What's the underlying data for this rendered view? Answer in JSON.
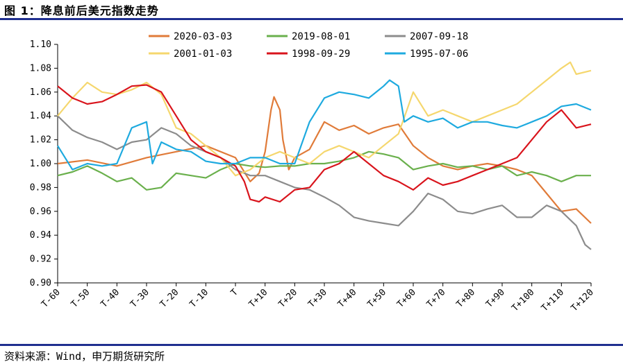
{
  "title": "图 1：降息前后美元指数走势",
  "source": "资料来源：Wind，申万期货研究所",
  "chart_data": {
    "type": "line",
    "ylim": [
      0.9,
      1.1
    ],
    "y_ticks": [
      "0.90",
      "0.92",
      "0.94",
      "0.96",
      "0.98",
      "1.00",
      "1.02",
      "1.04",
      "1.06",
      "1.08",
      "1.10"
    ],
    "x_ticks": [
      "T-60",
      "T-50",
      "T-40",
      "T-30",
      "T-20",
      "T-10",
      "T",
      "T+10",
      "T+20",
      "T+30",
      "T+40",
      "T+50",
      "T+60",
      "T+70",
      "T+80",
      "T+90",
      "T+100",
      "T+110",
      "T+120"
    ],
    "x_range": [
      -60,
      120
    ],
    "legend_position": "top",
    "series": [
      {
        "name": "2020-03-03",
        "color": "#e07b39",
        "x": [
          -60,
          -50,
          -40,
          -30,
          -20,
          -10,
          0,
          5,
          8,
          10,
          12,
          13,
          15,
          16,
          18,
          20,
          25,
          30,
          35,
          40,
          45,
          50,
          55,
          60,
          65,
          70,
          75,
          80,
          85,
          90,
          95,
          100,
          105,
          110,
          115,
          120
        ],
        "y": [
          1.0,
          1.003,
          0.998,
          1.005,
          1.01,
          1.015,
          1.005,
          0.985,
          0.992,
          1.01,
          1.045,
          1.056,
          1.045,
          1.02,
          0.995,
          1.005,
          1.012,
          1.035,
          1.028,
          1.032,
          1.025,
          1.03,
          1.033,
          1.015,
          1.005,
          0.998,
          0.995,
          0.998,
          1.0,
          0.998,
          0.995,
          0.99,
          0.975,
          0.96,
          0.962,
          0.95
        ]
      },
      {
        "name": "2019-08-01",
        "color": "#6ab04c",
        "x": [
          -60,
          -55,
          -50,
          -45,
          -40,
          -35,
          -30,
          -25,
          -20,
          -15,
          -10,
          -5,
          0,
          5,
          10,
          15,
          20,
          25,
          30,
          35,
          40,
          45,
          50,
          55,
          60,
          65,
          70,
          75,
          80,
          85,
          90,
          95,
          100,
          105,
          110,
          115,
          120
        ],
        "y": [
          0.99,
          0.993,
          0.998,
          0.992,
          0.985,
          0.988,
          0.978,
          0.98,
          0.992,
          0.99,
          0.988,
          0.995,
          1.0,
          0.998,
          0.997,
          0.998,
          0.998,
          1.0,
          1.0,
          1.002,
          1.005,
          1.01,
          1.008,
          1.005,
          0.995,
          0.998,
          1.0,
          0.997,
          0.998,
          0.995,
          0.998,
          0.99,
          0.993,
          0.99,
          0.985,
          0.99,
          0.99
        ]
      },
      {
        "name": "2007-09-18",
        "color": "#8c8c8c",
        "x": [
          -60,
          -55,
          -50,
          -45,
          -40,
          -35,
          -30,
          -25,
          -20,
          -15,
          -10,
          -5,
          0,
          5,
          10,
          15,
          20,
          25,
          30,
          35,
          40,
          45,
          50,
          55,
          60,
          65,
          70,
          75,
          80,
          85,
          90,
          95,
          100,
          105,
          110,
          115,
          118,
          120
        ],
        "y": [
          1.04,
          1.028,
          1.022,
          1.018,
          1.012,
          1.018,
          1.02,
          1.03,
          1.025,
          1.015,
          1.01,
          1.005,
          0.995,
          0.99,
          0.99,
          0.985,
          0.98,
          0.978,
          0.972,
          0.965,
          0.955,
          0.952,
          0.95,
          0.948,
          0.96,
          0.975,
          0.97,
          0.96,
          0.958,
          0.962,
          0.965,
          0.955,
          0.955,
          0.965,
          0.96,
          0.948,
          0.932,
          0.928
        ]
      },
      {
        "name": "2001-01-03",
        "color": "#f5d76e",
        "x": [
          -60,
          -55,
          -50,
          -45,
          -40,
          -35,
          -30,
          -25,
          -20,
          -15,
          -10,
          -5,
          0,
          5,
          10,
          15,
          20,
          25,
          30,
          35,
          40,
          45,
          50,
          55,
          60,
          65,
          70,
          75,
          80,
          85,
          90,
          95,
          100,
          105,
          110,
          113,
          115,
          120
        ],
        "y": [
          1.04,
          1.055,
          1.068,
          1.06,
          1.058,
          1.062,
          1.068,
          1.058,
          1.03,
          1.025,
          1.015,
          1.005,
          0.99,
          0.995,
          1.005,
          1.01,
          1.005,
          1.0,
          1.01,
          1.015,
          1.01,
          1.005,
          1.015,
          1.025,
          1.06,
          1.04,
          1.045,
          1.04,
          1.035,
          1.04,
          1.045,
          1.05,
          1.06,
          1.07,
          1.08,
          1.085,
          1.075,
          1.078
        ]
      },
      {
        "name": "1998-09-29",
        "color": "#d9141c",
        "x": [
          -60,
          -55,
          -50,
          -45,
          -40,
          -35,
          -30,
          -25,
          -20,
          -15,
          -10,
          -5,
          0,
          3,
          5,
          8,
          10,
          15,
          20,
          25,
          30,
          35,
          40,
          45,
          50,
          55,
          60,
          65,
          70,
          75,
          80,
          85,
          90,
          95,
          100,
          105,
          110,
          115,
          120
        ],
        "y": [
          1.065,
          1.055,
          1.05,
          1.052,
          1.058,
          1.065,
          1.066,
          1.06,
          1.04,
          1.02,
          1.01,
          1.005,
          0.998,
          0.985,
          0.97,
          0.968,
          0.972,
          0.968,
          0.978,
          0.98,
          0.995,
          1.0,
          1.01,
          1.0,
          0.99,
          0.985,
          0.978,
          0.988,
          0.982,
          0.985,
          0.99,
          0.995,
          1.0,
          1.005,
          1.02,
          1.035,
          1.045,
          1.03,
          1.033
        ]
      },
      {
        "name": "1995-07-06",
        "color": "#1eaadf",
        "x": [
          -60,
          -55,
          -50,
          -45,
          -40,
          -35,
          -30,
          -28,
          -25,
          -20,
          -15,
          -10,
          -5,
          0,
          5,
          10,
          15,
          20,
          25,
          30,
          35,
          40,
          45,
          50,
          52,
          55,
          57,
          60,
          65,
          70,
          75,
          80,
          85,
          90,
          95,
          100,
          105,
          110,
          115,
          120
        ],
        "y": [
          1.015,
          0.995,
          1.0,
          0.998,
          1.0,
          1.03,
          1.035,
          1.0,
          1.018,
          1.012,
          1.01,
          1.002,
          1.0,
          1.0,
          1.005,
          1.005,
          1.0,
          1.0,
          1.035,
          1.055,
          1.06,
          1.058,
          1.055,
          1.065,
          1.07,
          1.065,
          1.035,
          1.04,
          1.035,
          1.038,
          1.03,
          1.035,
          1.035,
          1.032,
          1.03,
          1.035,
          1.04,
          1.048,
          1.05,
          1.045
        ]
      }
    ]
  }
}
